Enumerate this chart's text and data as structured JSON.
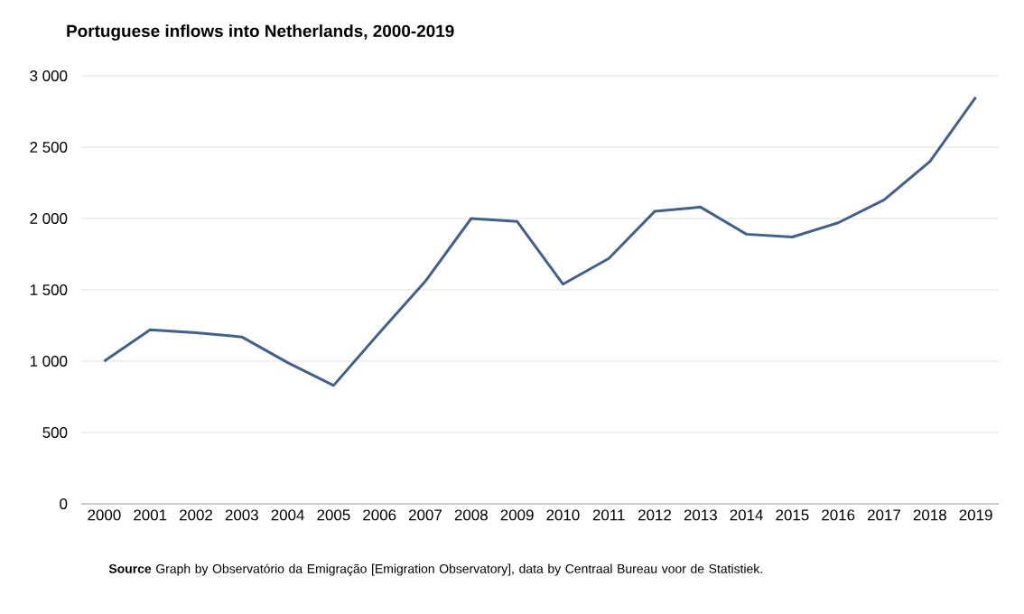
{
  "chart_data": {
    "type": "line",
    "title": "Portuguese inflows into Netherlands, 2000-2019",
    "categories": [
      "2000",
      "2001",
      "2002",
      "2003",
      "2004",
      "2005",
      "2006",
      "2007",
      "2008",
      "2009",
      "2010",
      "2011",
      "2012",
      "2013",
      "2014",
      "2015",
      "2016",
      "2017",
      "2018",
      "2019"
    ],
    "series": [
      {
        "color": "#41618a",
        "values": [
          1000,
          1220,
          1200,
          1170,
          990,
          830,
          1200,
          1560,
          2000,
          1980,
          1540,
          1720,
          2050,
          2080,
          1890,
          1870,
          1970,
          2130,
          2400,
          2850
        ]
      }
    ],
    "ylim": [
      0,
      3000
    ],
    "yticks": [
      0,
      500,
      {
        "value": 1000,
        "label": "1 000"
      },
      {
        "value": 1500,
        "label": "1 500"
      },
      {
        "value": 2000,
        "label": "2 000"
      },
      {
        "value": 2500,
        "label": "2 500"
      },
      {
        "value": 3000,
        "label": "3 000"
      }
    ],
    "grid": "y",
    "marker": "none",
    "line_style": "solid",
    "annotations": [
      "**Source**  Graph by Observatório da Emigração [Emigration Observatory], data by Centraal Bureau voor de Statistiek."
    ]
  }
}
